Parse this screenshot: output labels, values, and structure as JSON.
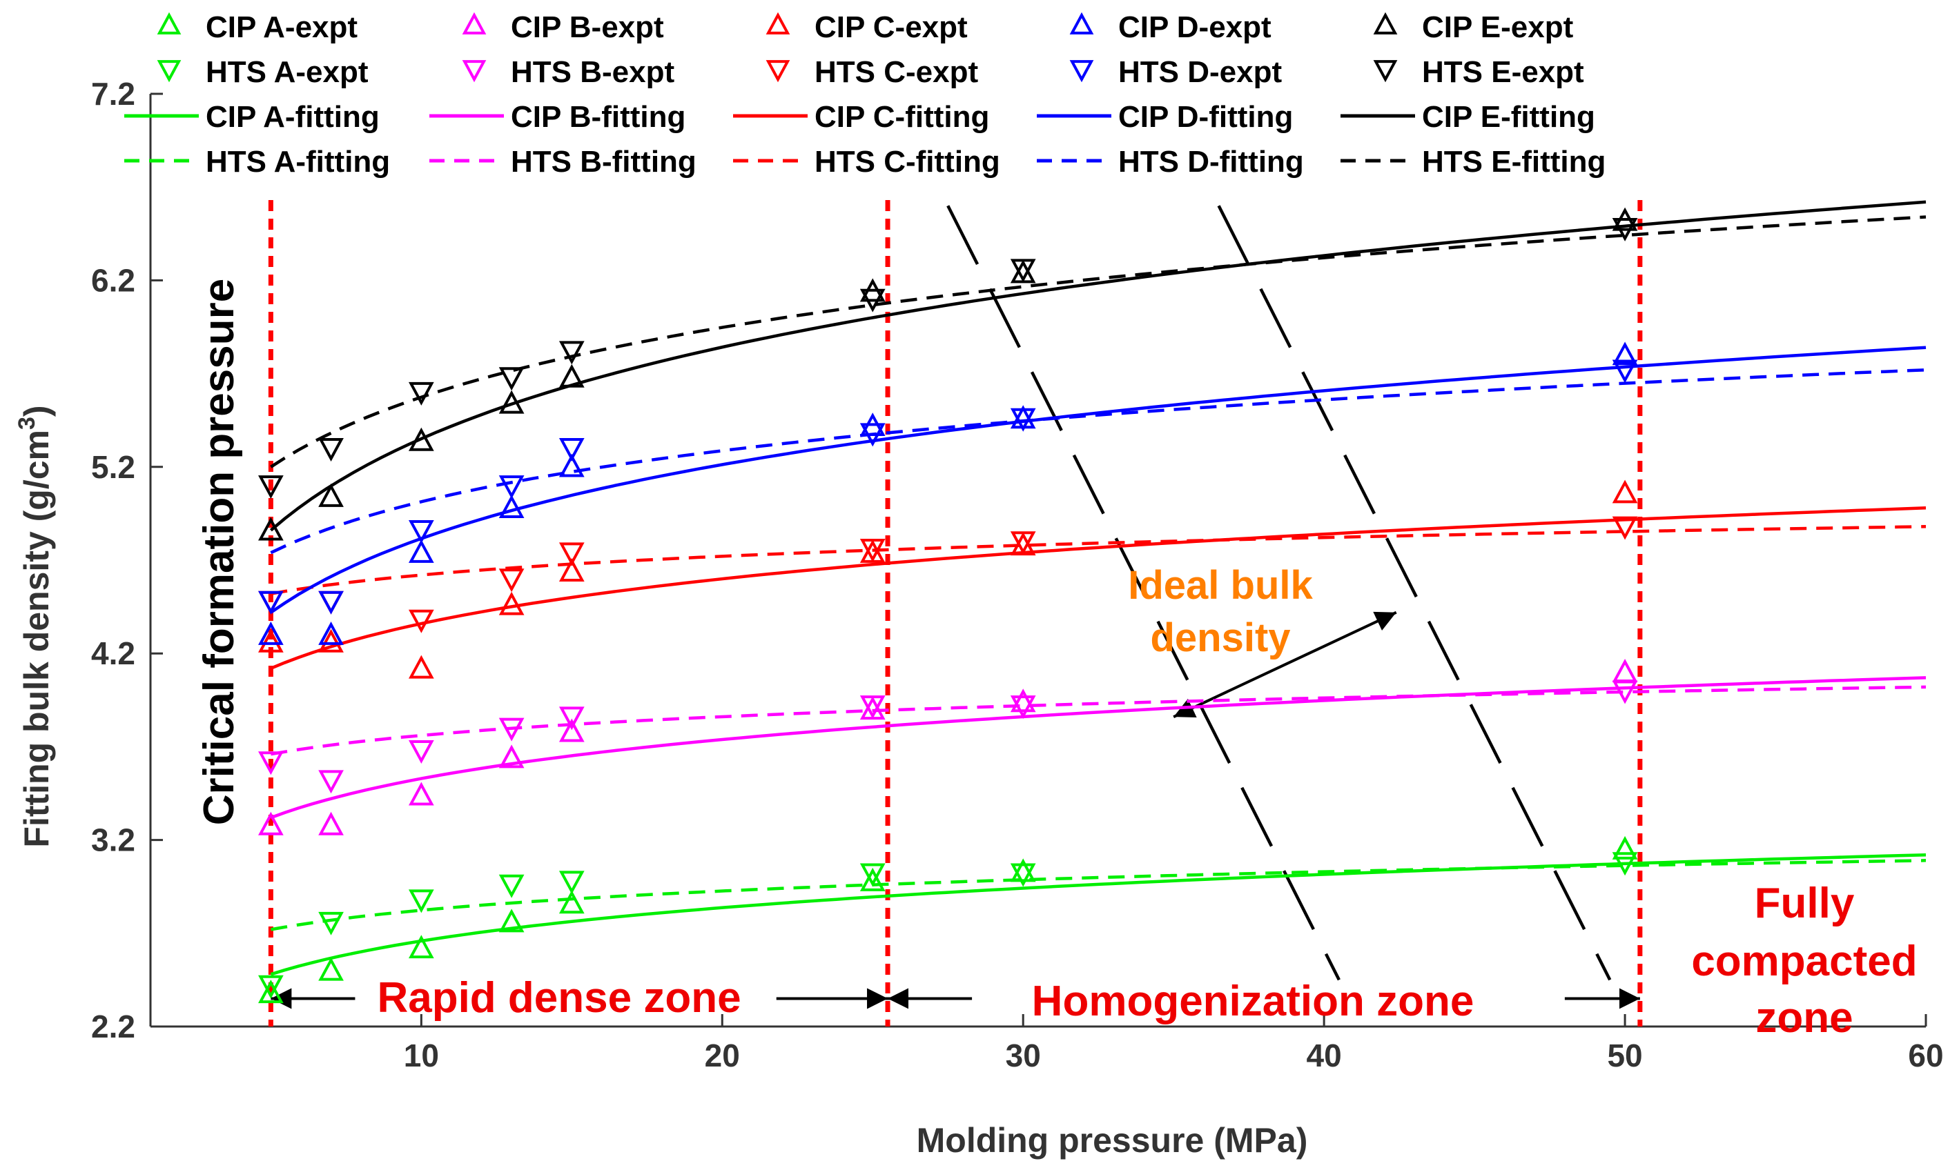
{
  "chart_data": {
    "type": "scatter",
    "xlabel": "Molding pressure (MPa)",
    "ylabel_main": "Fitting bulk density (g/cm",
    "ylabel_sup": "3",
    "ylabel_tail": ")",
    "xlim": [
      1,
      60
    ],
    "ylim": [
      2.2,
      7.2
    ],
    "xticks": [
      10,
      20,
      30,
      40,
      50,
      60
    ],
    "yticks": [
      2.2,
      3.2,
      4.2,
      5.2,
      6.2,
      7.2
    ],
    "ytick_labels": [
      "2.2",
      "3.2",
      "4.2",
      "5.2",
      "6.2",
      "7.2"
    ],
    "expt_x": [
      5,
      7,
      10,
      13,
      15,
      25,
      30,
      50
    ],
    "series": [
      {
        "key": "A",
        "color": "#00ee00",
        "cip_label": "CIP  A-expt",
        "hts_label": "HTS  A-expt",
        "cip_fit_label": "CIP  A-fitting",
        "hts_fit_label": "HTS  A-fitting",
        "cip_expt": [
          2.38,
          2.5,
          2.62,
          2.76,
          2.86,
          2.98,
          3.03,
          3.15
        ],
        "hts_expt": [
          2.42,
          2.76,
          2.88,
          2.96,
          2.98,
          3.02,
          3.02,
          3.08
        ],
        "cip_fit": [
          2.48,
          3.12
        ],
        "hts_fit": [
          2.72,
          3.09
        ]
      },
      {
        "key": "B",
        "color": "#ff00ff",
        "cip_label": "CIP  B-expt",
        "hts_label": "HTS  B-expt",
        "cip_fit_label": "CIP  B-fitting",
        "hts_fit_label": "HTS  B-fitting",
        "cip_expt": [
          3.28,
          3.28,
          3.44,
          3.64,
          3.78,
          3.9,
          3.94,
          4.1
        ],
        "hts_expt": [
          3.62,
          3.52,
          3.68,
          3.8,
          3.86,
          3.92,
          3.92,
          4.0
        ],
        "cip_fit": [
          3.32,
          4.07
        ],
        "hts_fit": [
          3.66,
          4.02
        ]
      },
      {
        "key": "C",
        "color": "#ff0000",
        "cip_label": "CIP  C-expt",
        "hts_label": "HTS  C-expt",
        "cip_fit_label": "CIP  C-fitting",
        "hts_fit_label": "HTS  C-fitting",
        "cip_expt": [
          4.26,
          4.26,
          4.12,
          4.46,
          4.64,
          4.74,
          4.78,
          5.06
        ],
        "hts_expt": [
          4.48,
          4.48,
          4.38,
          4.6,
          4.74,
          4.76,
          4.8,
          4.88
        ],
        "cip_fit": [
          4.12,
          4.98
        ],
        "hts_fit": [
          4.52,
          4.88
        ]
      },
      {
        "key": "D",
        "color": "#0000ff",
        "cip_label": "CIP  D-expt",
        "hts_label": "HTS  D-expt",
        "cip_fit_label": "CIP  D-fitting",
        "hts_fit_label": "HTS  D-fitting",
        "cip_expt": [
          4.3,
          4.3,
          4.74,
          4.98,
          5.2,
          5.42,
          5.46,
          5.8
        ],
        "hts_expt": [
          4.48,
          4.48,
          4.86,
          5.1,
          5.3,
          5.38,
          5.46,
          5.72
        ],
        "cip_fit": [
          4.42,
          5.84
        ],
        "hts_fit": [
          4.74,
          5.72
        ]
      },
      {
        "key": "E",
        "color": "#000000",
        "cip_label": "CIP  E-expt",
        "hts_label": "HTS  E-expt",
        "cip_fit_label": "CIP  E-fitting",
        "hts_fit_label": "HTS  E-fitting",
        "cip_expt": [
          4.86,
          5.04,
          5.34,
          5.54,
          5.68,
          6.14,
          6.24,
          6.52
        ],
        "hts_expt": [
          5.1,
          5.3,
          5.6,
          5.68,
          5.82,
          6.1,
          6.26,
          6.48
        ],
        "cip_fit": [
          4.86,
          6.62
        ],
        "hts_fit": [
          5.2,
          6.54
        ]
      }
    ],
    "vlines_x": [
      5,
      25.5,
      50.5
    ],
    "dashed_diagonals": [
      {
        "from": [
          27.5,
          6.6
        ],
        "to": [
          40.5,
          2.45
        ]
      },
      {
        "from": [
          36.5,
          6.6
        ],
        "to": [
          49.5,
          2.45
        ]
      }
    ],
    "ideal_arrow": {
      "from": [
        35,
        3.86
      ],
      "to": [
        42.4,
        4.42
      ]
    },
    "zone_arrows": [
      {
        "from": [
          7.8,
          2.35
        ],
        "to": [
          5.0,
          2.35
        ]
      },
      {
        "from": [
          21.8,
          2.35
        ],
        "to": [
          25.5,
          2.35
        ]
      },
      {
        "from": [
          28.3,
          2.35
        ],
        "to": [
          25.5,
          2.35
        ]
      },
      {
        "from": [
          48.0,
          2.35
        ],
        "to": [
          50.5,
          2.35
        ]
      }
    ],
    "annotations": {
      "critical": "Critical formation pressure",
      "ideal_line1": "Ideal bulk",
      "ideal_line2": "density",
      "rapid": "Rapid dense zone",
      "homogenization": "Homogenization zone",
      "fully_line1": "Fully",
      "fully_line2": "compacted",
      "fully_line3": "zone"
    }
  }
}
